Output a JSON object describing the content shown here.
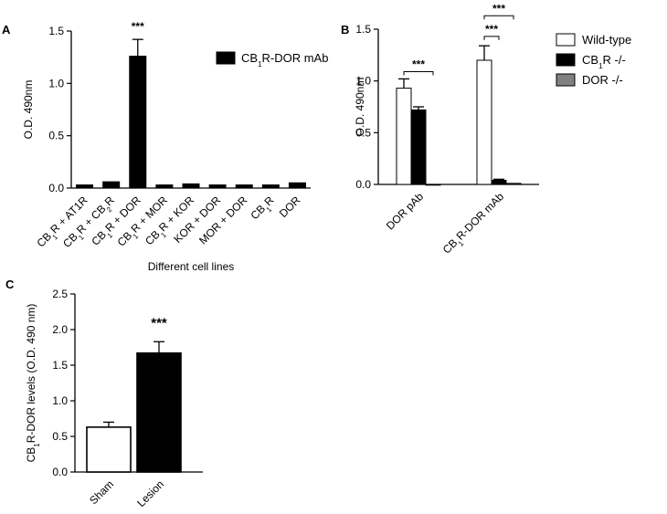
{
  "chart_data": [
    {
      "panel": "A",
      "type": "bar",
      "ylabel": "O.D. 490nm",
      "xlabel": "Different cell lines",
      "ylim": [
        0,
        1.5
      ],
      "yticks": [
        "0.0",
        "0.5",
        "1.0",
        "1.5"
      ],
      "categories": [
        [
          "CB",
          "1",
          "R + AT1R"
        ],
        [
          "CB",
          "1",
          "R + CB",
          "2",
          "R"
        ],
        [
          "CB",
          "1",
          "R + DOR"
        ],
        [
          "CB",
          "1",
          "R + MOR"
        ],
        [
          "CB",
          "1",
          "R + KOR"
        ],
        [
          "KOR + DOR"
        ],
        [
          "MOR + DOR"
        ],
        [
          "CB",
          "1",
          "R"
        ],
        [
          "DOR"
        ]
      ],
      "series": [
        {
          "name": [
            "CB",
            "1",
            "R-DOR mAb"
          ],
          "color": "#000000",
          "values": [
            0.03,
            0.06,
            1.26,
            0.03,
            0.04,
            0.03,
            0.03,
            0.03,
            0.05
          ],
          "errors": [
            0.0,
            0.0,
            0.16,
            0.0,
            0.0,
            0.0,
            0.0,
            0.0,
            0.0
          ]
        }
      ],
      "annotations": [
        {
          "category": 2,
          "text": "***"
        }
      ]
    },
    {
      "panel": "B",
      "type": "bar",
      "ylabel": "O.D. 490nm",
      "ylim": [
        0,
        1.5
      ],
      "yticks": [
        "0.0",
        "0.5",
        "1.0",
        "1.5"
      ],
      "categories": [
        [
          "DOR pAb"
        ],
        [
          "CB",
          "1",
          "R-DOR mAb"
        ]
      ],
      "series": [
        {
          "name": [
            "Wild-type"
          ],
          "color": "#ffffff",
          "values": [
            0.93,
            1.2
          ],
          "errors": [
            0.09,
            0.14
          ]
        },
        {
          "name": [
            "CB",
            "1",
            "R -/-"
          ],
          "color": "#000000",
          "values": [
            0.72,
            0.04
          ],
          "errors": [
            0.03,
            0.01
          ]
        },
        {
          "name": [
            "DOR -/-"
          ],
          "color": "#808080",
          "values": [
            0.0,
            0.01
          ],
          "errors": [
            0.0,
            0.0
          ]
        }
      ],
      "brackets": [
        {
          "category": 0,
          "from": 0,
          "to": 2,
          "y": 1.09,
          "text": "***"
        },
        {
          "category": 1,
          "from": 0,
          "to": 1,
          "y": 1.43,
          "text": "***"
        },
        {
          "category": 1,
          "from": 0,
          "to": 2,
          "y": 1.63,
          "text": "***"
        }
      ],
      "legend_position": "top-right"
    },
    {
      "panel": "C",
      "type": "bar",
      "ylabel": [
        "CB",
        "1",
        "R-DOR levels (O.D. 490 nm)"
      ],
      "ylim": [
        0,
        2.5
      ],
      "yticks": [
        "0.0",
        "0.5",
        "1.0",
        "1.5",
        "2.0",
        "2.5"
      ],
      "categories": [
        [
          "Sham"
        ],
        [
          "Lesion"
        ]
      ],
      "series": [
        {
          "colors": [
            "#ffffff",
            "#000000"
          ],
          "values": [
            0.63,
            1.67
          ],
          "errors": [
            0.07,
            0.16
          ]
        }
      ],
      "annotations": [
        {
          "category": 1,
          "text": "***"
        }
      ]
    }
  ]
}
